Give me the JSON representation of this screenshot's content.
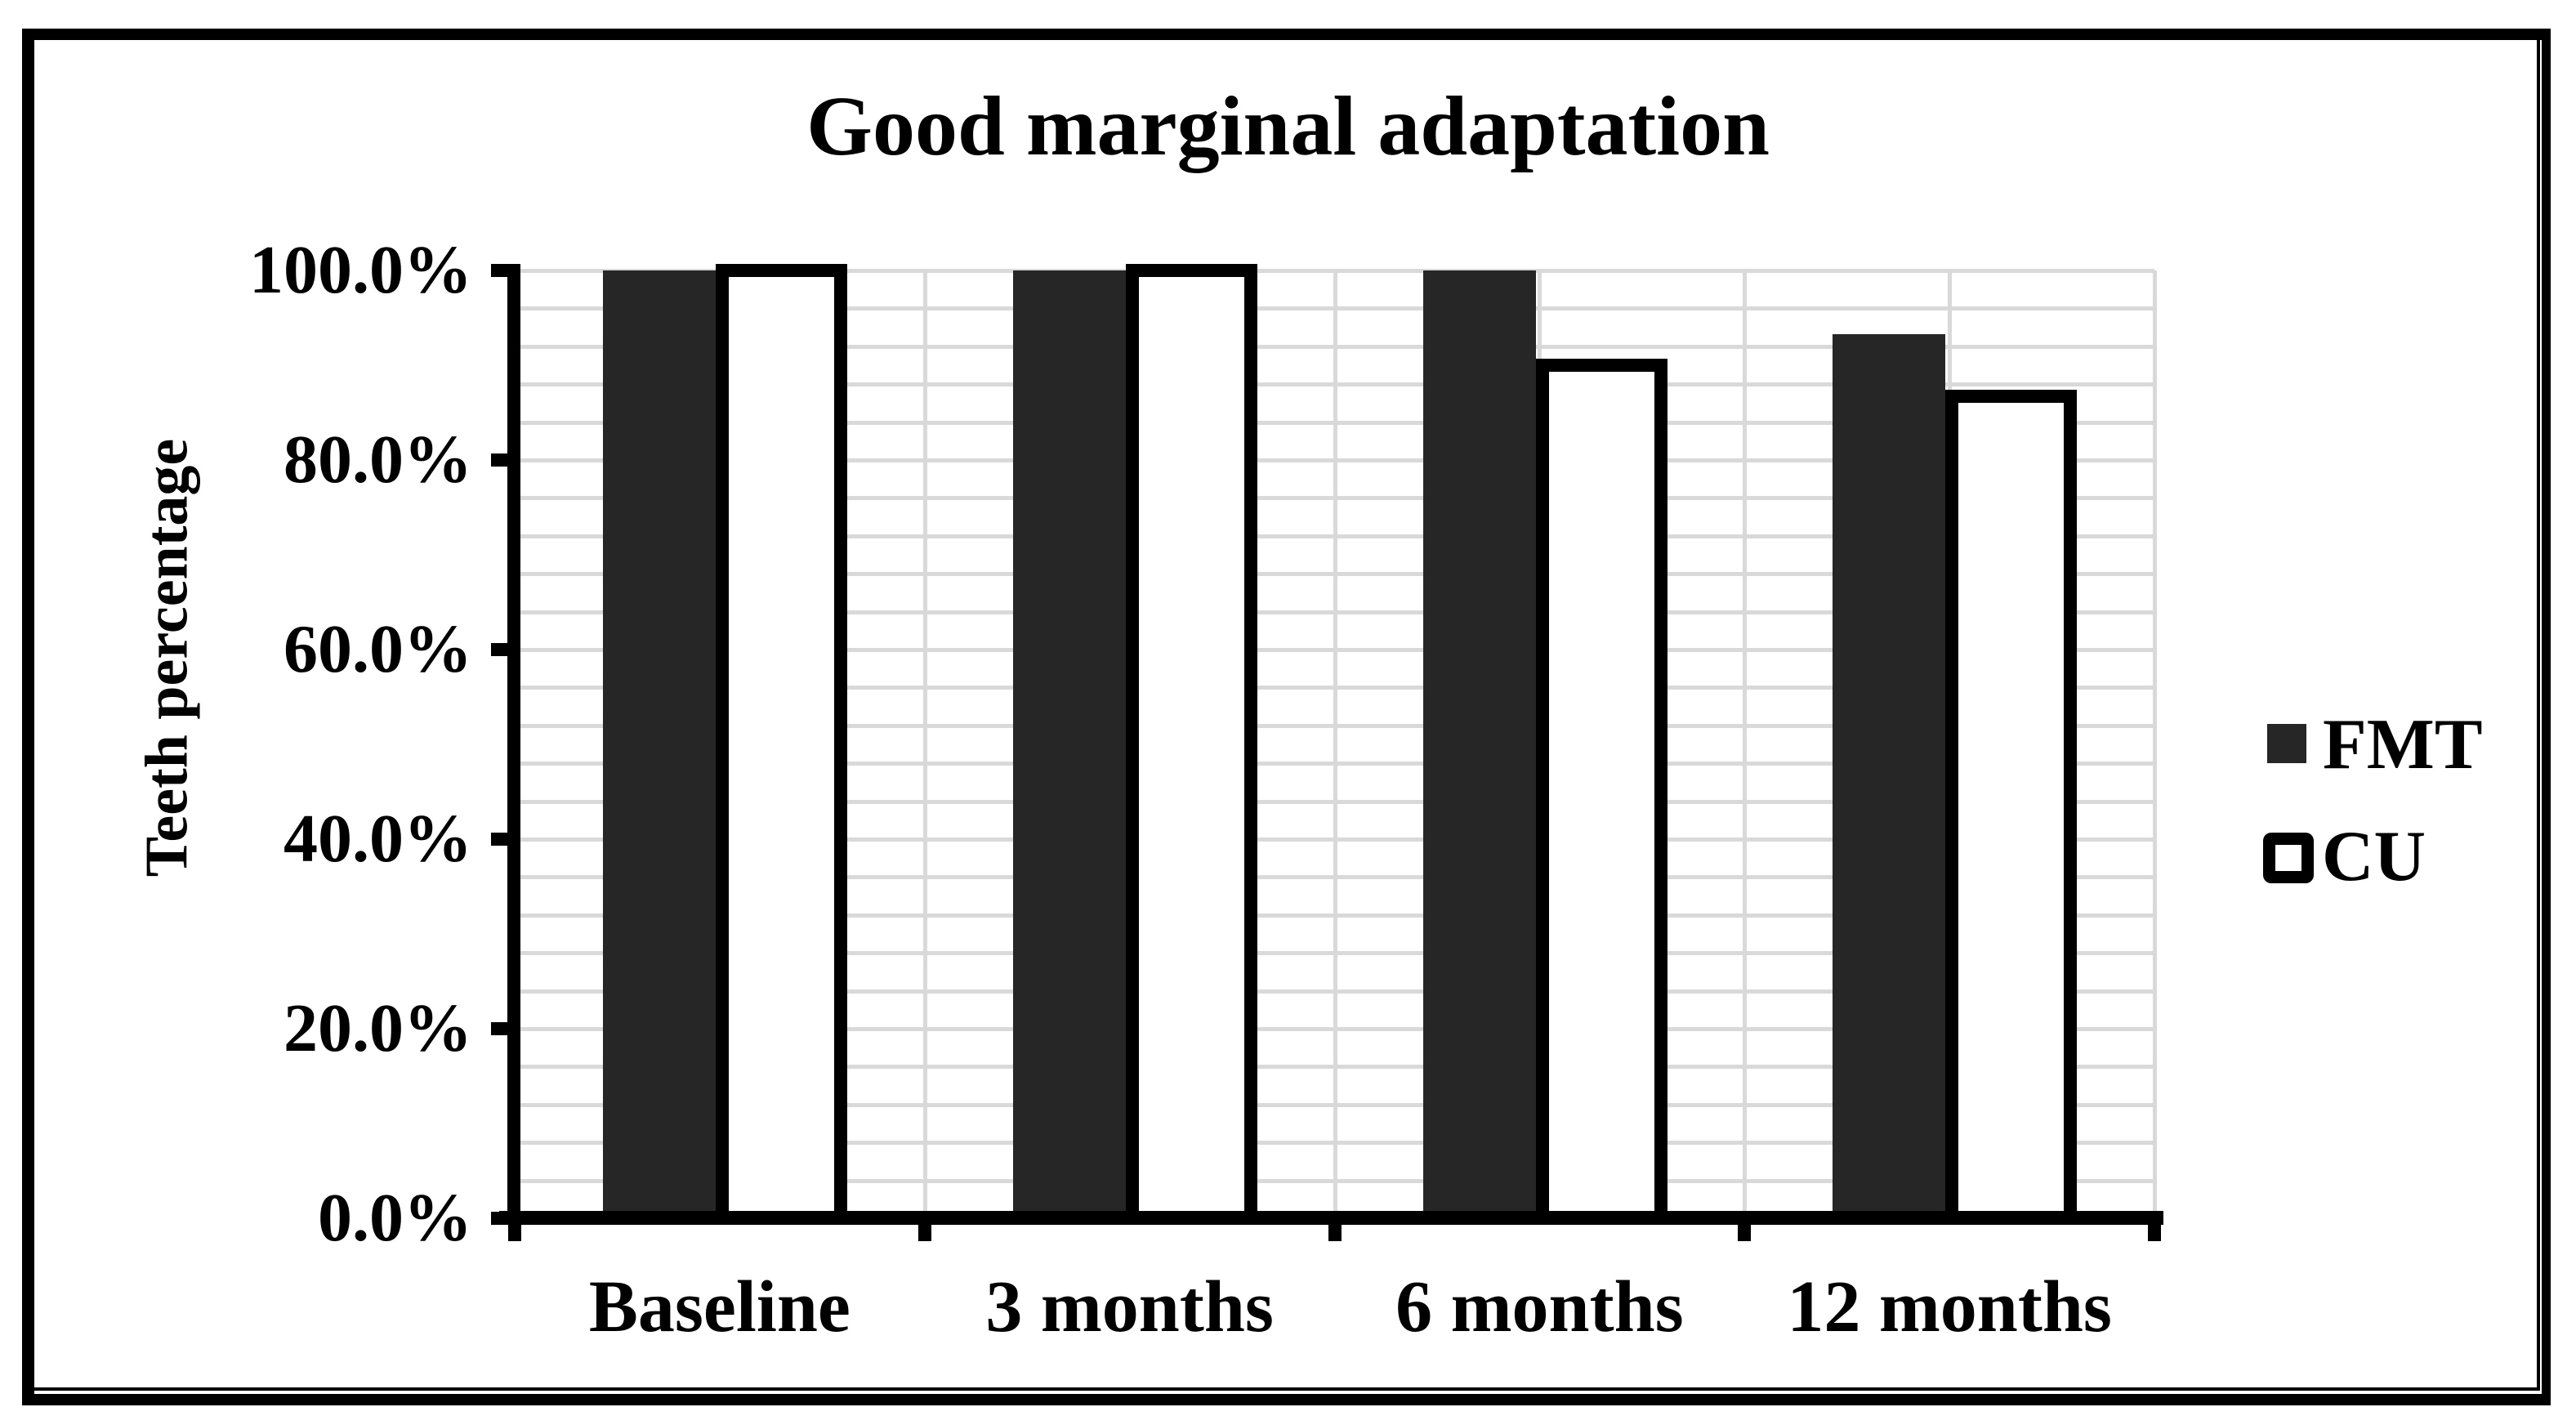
{
  "title": "Good marginal adaptation",
  "y_axis": {
    "title": "Teeth percentage",
    "tick_labels": [
      "0.0%",
      "20.0%",
      "40.0%",
      "60.0%",
      "80.0%",
      "100.0%"
    ],
    "tick_values": [
      0,
      20,
      40,
      60,
      80,
      100
    ]
  },
  "x_axis": {
    "categories": [
      "Baseline",
      "3 months",
      "6 months",
      "12 months"
    ]
  },
  "legend": {
    "position": "right",
    "entries": [
      {
        "label": "FMT",
        "swatch": "solid-dark-square"
      },
      {
        "label": "CU",
        "swatch": "white-square-black-outline"
      }
    ]
  },
  "colors": {
    "fmt_fill": "#262626",
    "cu_fill": "#ffffff",
    "outline": "#000000",
    "gridline": "#d9d9d9",
    "text": "#000000",
    "background": "#ffffff"
  },
  "chart_data": {
    "type": "bar",
    "title": "Good marginal adaptation",
    "categories": [
      "Baseline",
      "3 months",
      "6 months",
      "12 months"
    ],
    "series": [
      {
        "name": "FMT",
        "values": [
          100.0,
          100.0,
          100.0,
          93.3
        ]
      },
      {
        "name": "CU",
        "values": [
          100.0,
          100.0,
          90.0,
          86.7
        ]
      }
    ],
    "xlabel": "",
    "ylabel": "Teeth percentage",
    "ylim": [
      0,
      100
    ],
    "y_major_tick_step": 20,
    "y_minor_gridline_step": 4,
    "value_format": "percent_one_decimal",
    "grid": true,
    "legend_position": "right"
  }
}
